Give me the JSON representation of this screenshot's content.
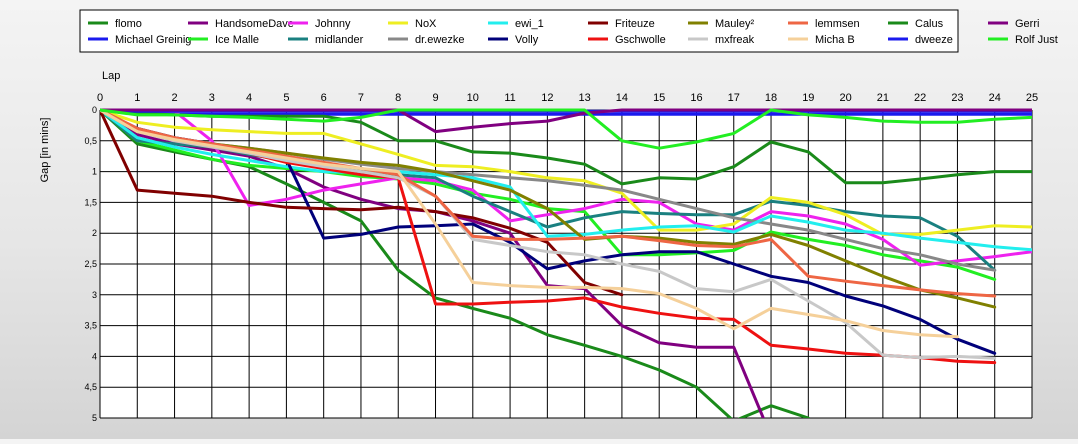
{
  "chart_data": {
    "type": "line",
    "title": "",
    "xlabel": "Lap",
    "ylabel": "Gap [in mins]",
    "x": [
      0,
      1,
      2,
      3,
      4,
      5,
      6,
      7,
      8,
      9,
      10,
      11,
      12,
      13,
      14,
      15,
      16,
      17,
      18,
      19,
      20,
      21,
      22,
      23,
      24,
      25
    ],
    "xlim": [
      0,
      25
    ],
    "ylim": [
      0,
      5
    ],
    "y_inverted": true,
    "y_ticks": [
      0,
      0.5,
      1,
      1.5,
      2,
      2.5,
      3,
      3.5,
      4,
      4.5,
      5
    ],
    "y_tick_labels": [
      "0",
      "0,5",
      "1",
      "1,5",
      "2",
      "2,5",
      "3",
      "3,5",
      "4",
      "4,5",
      "5"
    ],
    "grid": true,
    "legend_position": "top",
    "series": [
      {
        "name": "flomo",
        "color": "#1a8a1a",
        "values": [
          0,
          0.55,
          0.68,
          0.8,
          0.92,
          1.2,
          1.5,
          1.8,
          2.6,
          3.05,
          3.22,
          3.38,
          3.65,
          3.82,
          4.0,
          4.22,
          4.5,
          5.05,
          4.8,
          5.0,
          null,
          null,
          null,
          null,
          null,
          null
        ]
      },
      {
        "name": "Michael Greinig",
        "color": "#1a1aee",
        "values": [
          0,
          0.05,
          0.07,
          0.07,
          0.07,
          0.07,
          0.07,
          0.07,
          0.07,
          0.07,
          0.07,
          0.07,
          0.07,
          0.07,
          0.07,
          0.07,
          0.07,
          0.07,
          0.07,
          0.07,
          0.07,
          0.07,
          0.07,
          0.07,
          0.07,
          0.07
        ]
      },
      {
        "name": "HandsomeDave",
        "color": "#800080",
        "values": [
          0,
          0.4,
          0.55,
          0.65,
          0.75,
          0.95,
          1.25,
          1.45,
          1.6,
          1.65,
          1.8,
          2.0,
          2.85,
          2.9,
          3.5,
          3.78,
          3.85,
          3.85,
          5.3,
          null,
          null,
          null,
          null,
          null,
          null,
          null
        ]
      },
      {
        "name": "Ice Malle",
        "color": "#22ee22",
        "values": [
          0,
          0.5,
          0.65,
          0.8,
          0.9,
          0.95,
          1.0,
          1.08,
          1.12,
          1.2,
          1.35,
          1.45,
          1.6,
          1.65,
          2.35,
          2.35,
          2.32,
          2.28,
          1.98,
          2.1,
          2.2,
          2.35,
          2.45,
          2.55,
          2.75,
          null
        ]
      },
      {
        "name": "Johnny",
        "color": "#ee22ee",
        "values": [
          0,
          0.02,
          0.02,
          0.5,
          1.55,
          1.45,
          1.3,
          1.2,
          1.1,
          1.15,
          1.3,
          1.8,
          1.7,
          1.6,
          1.45,
          1.5,
          1.85,
          1.95,
          1.65,
          1.72,
          1.85,
          2.1,
          2.52,
          2.45,
          2.38,
          2.3
        ]
      },
      {
        "name": "midlander",
        "color": "#1a8080",
        "values": [
          0,
          0.5,
          0.55,
          0.6,
          0.72,
          0.82,
          0.9,
          0.98,
          1.05,
          1.1,
          1.4,
          1.65,
          1.9,
          1.75,
          1.65,
          1.68,
          1.7,
          1.7,
          1.48,
          1.55,
          1.65,
          1.72,
          1.75,
          2.05,
          2.6,
          null
        ]
      },
      {
        "name": "NoX",
        "color": "#eeee22",
        "values": [
          0,
          0.2,
          0.28,
          0.32,
          0.35,
          0.38,
          0.38,
          0.55,
          0.72,
          0.9,
          0.92,
          1.0,
          1.1,
          1.15,
          1.35,
          1.95,
          1.95,
          1.85,
          1.42,
          1.5,
          1.7,
          2.02,
          2.02,
          1.95,
          1.88,
          1.9
        ]
      },
      {
        "name": "dr.ewezke",
        "color": "#888888",
        "values": [
          0,
          0.3,
          0.45,
          0.55,
          0.62,
          0.7,
          0.8,
          0.88,
          0.95,
          1.0,
          1.05,
          1.1,
          1.15,
          1.22,
          1.3,
          1.45,
          1.6,
          1.75,
          1.85,
          1.95,
          2.1,
          2.25,
          2.35,
          2.5,
          2.6,
          null
        ]
      },
      {
        "name": "ewi_1",
        "color": "#22eeee",
        "values": [
          0,
          0.45,
          0.6,
          0.72,
          0.82,
          0.92,
          1.0,
          1.02,
          1.0,
          1.05,
          1.1,
          1.25,
          2.05,
          2.02,
          1.95,
          1.9,
          1.88,
          1.98,
          1.72,
          1.82,
          1.95,
          2.0,
          2.08,
          2.15,
          2.22,
          2.27
        ]
      },
      {
        "name": "Volly",
        "color": "#00007a",
        "values": [
          0,
          0.3,
          0.45,
          0.55,
          0.65,
          0.8,
          2.08,
          2.02,
          1.9,
          1.88,
          1.85,
          2.15,
          2.58,
          2.45,
          2.35,
          2.3,
          2.3,
          2.5,
          2.7,
          2.8,
          3.02,
          3.18,
          3.4,
          3.72,
          3.95,
          null
        ]
      },
      {
        "name": "Friteuze",
        "color": "#800000",
        "values": [
          0,
          1.3,
          1.35,
          1.4,
          1.5,
          1.58,
          1.6,
          1.62,
          1.58,
          1.65,
          1.75,
          1.92,
          2.15,
          2.8,
          3.0,
          null,
          null,
          null,
          null,
          null,
          null,
          null,
          null,
          null,
          null,
          null
        ]
      },
      {
        "name": "Gschwolle",
        "color": "#ee1111",
        "values": [
          0,
          0.3,
          0.5,
          0.6,
          0.7,
          0.85,
          0.95,
          1.05,
          1.1,
          3.15,
          3.15,
          3.12,
          3.1,
          3.05,
          3.2,
          3.3,
          3.38,
          3.4,
          3.82,
          3.88,
          3.95,
          3.98,
          4.02,
          4.08,
          4.1,
          null
        ]
      },
      {
        "name": "Mauley²",
        "color": "#808000",
        "values": [
          0,
          0.35,
          0.48,
          0.55,
          0.62,
          0.7,
          0.78,
          0.85,
          0.9,
          1.0,
          1.15,
          1.3,
          1.6,
          2.1,
          2.05,
          2.08,
          2.15,
          2.18,
          2.02,
          2.2,
          2.45,
          2.7,
          2.92,
          3.05,
          3.2,
          null
        ]
      },
      {
        "name": "mxfreak",
        "color": "#c8c8c8",
        "values": [
          0,
          0.35,
          0.5,
          0.6,
          0.7,
          0.82,
          0.92,
          1.0,
          1.1,
          1.4,
          2.1,
          2.2,
          2.3,
          2.35,
          2.5,
          2.62,
          2.9,
          2.95,
          2.75,
          3.1,
          3.45,
          3.98,
          4.02,
          4.0,
          4.03,
          null
        ]
      },
      {
        "name": "lemmsen",
        "color": "#ee6644",
        "values": [
          0,
          0.3,
          0.45,
          0.55,
          0.65,
          0.75,
          0.85,
          0.95,
          1.05,
          1.4,
          2.05,
          2.1,
          2.1,
          2.08,
          2.05,
          2.12,
          2.2,
          2.22,
          2.1,
          2.7,
          2.78,
          2.85,
          2.92,
          2.98,
          3.02,
          null
        ]
      },
      {
        "name": "Micha B",
        "color": "#f5d09a",
        "values": [
          0,
          0.35,
          0.48,
          0.58,
          0.68,
          0.78,
          0.88,
          0.95,
          1.0,
          1.85,
          2.8,
          2.85,
          2.88,
          2.88,
          2.9,
          2.98,
          3.22,
          3.55,
          3.22,
          3.32,
          3.42,
          3.58,
          3.65,
          3.68,
          null,
          null
        ]
      },
      {
        "name": "Calus",
        "color": "#1a8a1a",
        "values": [
          0,
          0.05,
          0.08,
          0.1,
          0.1,
          0.1,
          0.1,
          0.2,
          0.5,
          0.5,
          0.68,
          0.7,
          0.78,
          0.88,
          1.2,
          1.1,
          1.12,
          0.92,
          0.52,
          0.68,
          1.18,
          1.18,
          1.12,
          1.05,
          1.0,
          1.0
        ]
      },
      {
        "name": "dweeze",
        "color": "#1a1aee",
        "values": [
          0,
          0.02,
          0.02,
          0.02,
          0.02,
          0.02,
          0.02,
          0.02,
          0.02,
          0.02,
          0.02,
          0.02,
          0.02,
          0.02,
          0.02,
          0.02,
          0.02,
          0.02,
          0.02,
          0.02,
          0.02,
          0.02,
          0.02,
          0.02,
          0.02,
          0.02
        ]
      },
      {
        "name": "Gerri",
        "color": "#800080",
        "values": [
          0,
          0,
          0,
          0,
          0,
          0,
          0,
          0,
          0,
          0.35,
          0.28,
          0.22,
          0.18,
          0.05,
          0,
          0,
          0,
          0,
          0,
          0,
          0,
          0,
          0,
          0,
          0,
          0
        ]
      },
      {
        "name": "Rolf Just",
        "color": "#22ee22",
        "values": [
          0,
          0.08,
          0.08,
          0.1,
          0.12,
          0.15,
          0.18,
          0.12,
          0,
          0,
          0,
          0,
          0,
          0,
          0.5,
          0.62,
          0.52,
          0.38,
          0,
          0.08,
          0.12,
          0.18,
          0.2,
          0.2,
          0.15,
          0.12
        ]
      }
    ]
  }
}
